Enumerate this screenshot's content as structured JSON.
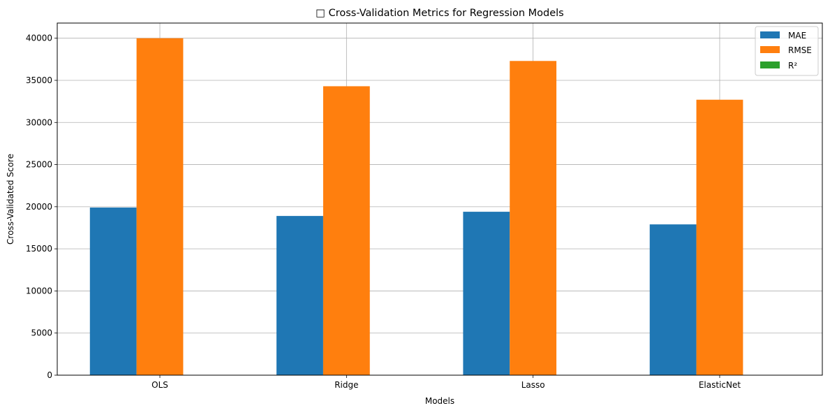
{
  "chart_data": {
    "type": "bar",
    "title": "□ Cross-Validation Metrics for Regression Models",
    "xlabel": "Models",
    "ylabel": "Cross-Validated Score",
    "categories": [
      "OLS",
      "Ridge",
      "Lasso",
      "ElasticNet"
    ],
    "series": [
      {
        "name": "MAE",
        "color": "#1f77b4",
        "values": [
          19900,
          18900,
          19400,
          17900
        ]
      },
      {
        "name": "RMSE",
        "color": "#ff7f0e",
        "values": [
          40000,
          34300,
          37300,
          32700
        ]
      },
      {
        "name": "R²",
        "color": "#2ca02c",
        "values": [
          0.85,
          0.88,
          0.86,
          0.89
        ]
      }
    ],
    "ylim": [
      0,
      41800
    ],
    "yticks": [
      "0",
      "5000",
      "10000",
      "15000",
      "20000",
      "25000",
      "30000",
      "35000",
      "40000"
    ],
    "grid": true,
    "legend_position": "top-right"
  }
}
